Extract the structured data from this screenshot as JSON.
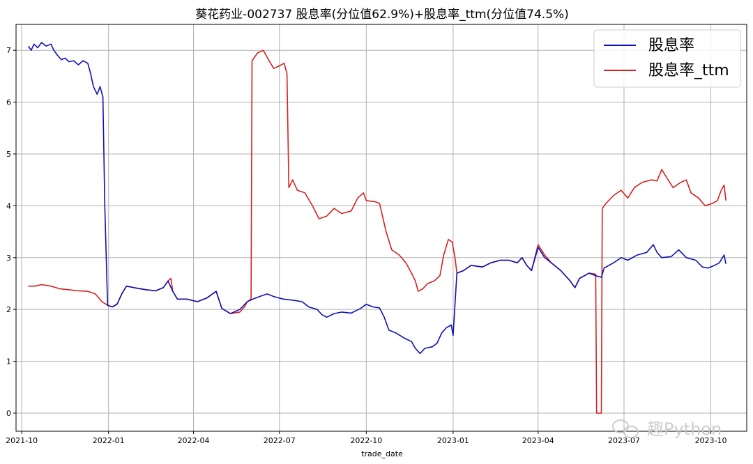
{
  "chart_data": {
    "type": "line",
    "title": "葵花药业-002737 股息率(分位值62.9%)+股息率_ttm(分位值74.5%)",
    "xlabel": "trade_date",
    "ylabel": "",
    "x_range": [
      "2021-09-25",
      "2023-11-08"
    ],
    "ylim": [
      -0.35,
      7.5
    ],
    "y_ticks": [
      0,
      1,
      2,
      3,
      4,
      5,
      6,
      7
    ],
    "x_ticks": [
      {
        "date": "2021-10-01",
        "label": "2021-10"
      },
      {
        "date": "2022-01-01",
        "label": "2022-01"
      },
      {
        "date": "2022-04-01",
        "label": "2022-04"
      },
      {
        "date": "2022-07-01",
        "label": "2022-07"
      },
      {
        "date": "2022-10-01",
        "label": "2022-10"
      },
      {
        "date": "2023-01-01",
        "label": "2023-01"
      },
      {
        "date": "2023-04-01",
        "label": "2023-04"
      },
      {
        "date": "2023-07-01",
        "label": "2023-07"
      },
      {
        "date": "2023-10-01",
        "label": "2023-10"
      }
    ],
    "grid": true,
    "legend_position": "top-right",
    "series": [
      {
        "name": "股息率",
        "color": "#1010b4",
        "points": [
          [
            "2021-10-08",
            7.08
          ],
          [
            "2021-10-11",
            7.0
          ],
          [
            "2021-10-14",
            7.12
          ],
          [
            "2021-10-18",
            7.05
          ],
          [
            "2021-10-22",
            7.15
          ],
          [
            "2021-10-27",
            7.08
          ],
          [
            "2021-11-01",
            7.12
          ],
          [
            "2021-11-04",
            7.0
          ],
          [
            "2021-11-08",
            6.9
          ],
          [
            "2021-11-12",
            6.82
          ],
          [
            "2021-11-16",
            6.85
          ],
          [
            "2021-11-20",
            6.78
          ],
          [
            "2021-11-25",
            6.8
          ],
          [
            "2021-11-30",
            6.72
          ],
          [
            "2021-12-05",
            6.8
          ],
          [
            "2021-12-10",
            6.75
          ],
          [
            "2021-12-13",
            6.55
          ],
          [
            "2021-12-16",
            6.3
          ],
          [
            "2021-12-20",
            6.15
          ],
          [
            "2021-12-23",
            6.3
          ],
          [
            "2021-12-26",
            6.1
          ],
          [
            "2021-12-28",
            4.0
          ],
          [
            "2021-12-31",
            2.08
          ],
          [
            "2022-01-05",
            2.05
          ],
          [
            "2022-01-10",
            2.1
          ],
          [
            "2022-01-15",
            2.3
          ],
          [
            "2022-01-20",
            2.45
          ],
          [
            "2022-01-28",
            2.42
          ],
          [
            "2022-02-10",
            2.38
          ],
          [
            "2022-02-20",
            2.36
          ],
          [
            "2022-02-28",
            2.42
          ],
          [
            "2022-03-05",
            2.55
          ],
          [
            "2022-03-10",
            2.35
          ],
          [
            "2022-03-15",
            2.2
          ],
          [
            "2022-03-25",
            2.2
          ],
          [
            "2022-04-05",
            2.15
          ],
          [
            "2022-04-15",
            2.22
          ],
          [
            "2022-04-25",
            2.35
          ],
          [
            "2022-05-01",
            2.02
          ],
          [
            "2022-05-10",
            1.92
          ],
          [
            "2022-05-20",
            2.0
          ],
          [
            "2022-05-28",
            2.15
          ],
          [
            "2022-06-03",
            2.2
          ],
          [
            "2022-06-10",
            2.25
          ],
          [
            "2022-06-18",
            2.3
          ],
          [
            "2022-06-25",
            2.25
          ],
          [
            "2022-07-05",
            2.2
          ],
          [
            "2022-07-15",
            2.18
          ],
          [
            "2022-07-25",
            2.15
          ],
          [
            "2022-08-01",
            2.05
          ],
          [
            "2022-08-10",
            2.0
          ],
          [
            "2022-08-15",
            1.9
          ],
          [
            "2022-08-20",
            1.85
          ],
          [
            "2022-08-28",
            1.92
          ],
          [
            "2022-09-05",
            1.95
          ],
          [
            "2022-09-15",
            1.93
          ],
          [
            "2022-09-25",
            2.02
          ],
          [
            "2022-10-01",
            2.1
          ],
          [
            "2022-10-08",
            2.05
          ],
          [
            "2022-10-15",
            2.03
          ],
          [
            "2022-10-20",
            1.85
          ],
          [
            "2022-10-25",
            1.6
          ],
          [
            "2022-11-01",
            1.55
          ],
          [
            "2022-11-10",
            1.45
          ],
          [
            "2022-11-18",
            1.38
          ],
          [
            "2022-11-22",
            1.25
          ],
          [
            "2022-11-27",
            1.15
          ],
          [
            "2022-12-02",
            1.25
          ],
          [
            "2022-12-10",
            1.28
          ],
          [
            "2022-12-15",
            1.35
          ],
          [
            "2022-12-20",
            1.55
          ],
          [
            "2022-12-25",
            1.65
          ],
          [
            "2022-12-30",
            1.7
          ],
          [
            "2023-01-01",
            1.5
          ],
          [
            "2023-01-05",
            2.7
          ],
          [
            "2023-01-12",
            2.75
          ],
          [
            "2023-01-20",
            2.85
          ],
          [
            "2023-02-01",
            2.82
          ],
          [
            "2023-02-10",
            2.9
          ],
          [
            "2023-02-20",
            2.95
          ],
          [
            "2023-03-01",
            2.95
          ],
          [
            "2023-03-10",
            2.9
          ],
          [
            "2023-03-15",
            3.0
          ],
          [
            "2023-03-20",
            2.85
          ],
          [
            "2023-03-25",
            2.75
          ],
          [
            "2023-04-01",
            3.2
          ],
          [
            "2023-04-08",
            3.0
          ],
          [
            "2023-04-15",
            2.9
          ],
          [
            "2023-04-25",
            2.75
          ],
          [
            "2023-05-05",
            2.55
          ],
          [
            "2023-05-10",
            2.42
          ],
          [
            "2023-05-15",
            2.6
          ],
          [
            "2023-05-25",
            2.7
          ],
          [
            "2023-06-01",
            2.65
          ],
          [
            "2023-06-07",
            2.62
          ],
          [
            "2023-06-10",
            2.8
          ],
          [
            "2023-06-20",
            2.9
          ],
          [
            "2023-06-28",
            3.0
          ],
          [
            "2023-07-05",
            2.95
          ],
          [
            "2023-07-15",
            3.05
          ],
          [
            "2023-07-25",
            3.1
          ],
          [
            "2023-08-01",
            3.25
          ],
          [
            "2023-08-05",
            3.1
          ],
          [
            "2023-08-10",
            3.0
          ],
          [
            "2023-08-20",
            3.02
          ],
          [
            "2023-08-28",
            3.15
          ],
          [
            "2023-09-05",
            3.0
          ],
          [
            "2023-09-15",
            2.95
          ],
          [
            "2023-09-22",
            2.82
          ],
          [
            "2023-09-28",
            2.8
          ],
          [
            "2023-10-05",
            2.85
          ],
          [
            "2023-10-10",
            2.9
          ],
          [
            "2023-10-15",
            3.05
          ],
          [
            "2023-10-17",
            2.88
          ]
        ]
      },
      {
        "name": "股息率_ttm",
        "color": "#d42020",
        "points": [
          [
            "2021-10-08",
            2.45
          ],
          [
            "2021-10-15",
            2.45
          ],
          [
            "2021-10-22",
            2.48
          ],
          [
            "2021-11-01",
            2.45
          ],
          [
            "2021-11-10",
            2.4
          ],
          [
            "2021-11-20",
            2.38
          ],
          [
            "2021-11-30",
            2.36
          ],
          [
            "2021-12-10",
            2.35
          ],
          [
            "2021-12-18",
            2.3
          ],
          [
            "2021-12-25",
            2.15
          ],
          [
            "2021-12-31",
            2.08
          ],
          [
            "2022-01-05",
            2.05
          ],
          [
            "2022-01-10",
            2.1
          ],
          [
            "2022-01-15",
            2.3
          ],
          [
            "2022-01-20",
            2.45
          ],
          [
            "2022-01-28",
            2.42
          ],
          [
            "2022-02-10",
            2.38
          ],
          [
            "2022-02-20",
            2.36
          ],
          [
            "2022-02-28",
            2.42
          ],
          [
            "2022-03-05",
            2.55
          ],
          [
            "2022-03-08",
            2.6
          ],
          [
            "2022-03-10",
            2.35
          ],
          [
            "2022-03-15",
            2.2
          ],
          [
            "2022-03-25",
            2.2
          ],
          [
            "2022-04-05",
            2.15
          ],
          [
            "2022-04-15",
            2.22
          ],
          [
            "2022-04-25",
            2.35
          ],
          [
            "2022-05-01",
            2.02
          ],
          [
            "2022-05-10",
            1.92
          ],
          [
            "2022-05-20",
            1.95
          ],
          [
            "2022-05-25",
            2.05
          ],
          [
            "2022-05-28",
            2.15
          ],
          [
            "2022-06-01",
            2.2
          ],
          [
            "2022-06-02",
            6.8
          ],
          [
            "2022-06-08",
            6.95
          ],
          [
            "2022-06-14",
            7.0
          ],
          [
            "2022-06-20",
            6.8
          ],
          [
            "2022-06-25",
            6.65
          ],
          [
            "2022-07-01",
            6.7
          ],
          [
            "2022-07-06",
            6.75
          ],
          [
            "2022-07-09",
            6.55
          ],
          [
            "2022-07-11",
            4.35
          ],
          [
            "2022-07-15",
            4.5
          ],
          [
            "2022-07-20",
            4.3
          ],
          [
            "2022-07-28",
            4.25
          ],
          [
            "2022-08-05",
            4.0
          ],
          [
            "2022-08-12",
            3.75
          ],
          [
            "2022-08-20",
            3.8
          ],
          [
            "2022-08-28",
            3.95
          ],
          [
            "2022-09-05",
            3.85
          ],
          [
            "2022-09-15",
            3.9
          ],
          [
            "2022-09-22",
            4.15
          ],
          [
            "2022-09-28",
            4.25
          ],
          [
            "2022-10-01",
            4.1
          ],
          [
            "2022-10-10",
            4.08
          ],
          [
            "2022-10-15",
            4.05
          ],
          [
            "2022-10-22",
            3.5
          ],
          [
            "2022-10-28",
            3.15
          ],
          [
            "2022-11-05",
            3.05
          ],
          [
            "2022-11-12",
            2.9
          ],
          [
            "2022-11-18",
            2.7
          ],
          [
            "2022-11-22",
            2.55
          ],
          [
            "2022-11-25",
            2.35
          ],
          [
            "2022-11-30",
            2.4
          ],
          [
            "2022-12-05",
            2.5
          ],
          [
            "2022-12-12",
            2.55
          ],
          [
            "2022-12-18",
            2.65
          ],
          [
            "2022-12-22",
            3.05
          ],
          [
            "2022-12-27",
            3.35
          ],
          [
            "2022-12-31",
            3.3
          ],
          [
            "2023-01-03",
            3.0
          ],
          [
            "2023-01-05",
            2.7
          ],
          [
            "2023-01-12",
            2.75
          ],
          [
            "2023-01-20",
            2.85
          ],
          [
            "2023-02-01",
            2.82
          ],
          [
            "2023-02-10",
            2.9
          ],
          [
            "2023-02-20",
            2.95
          ],
          [
            "2023-03-01",
            2.95
          ],
          [
            "2023-03-10",
            2.9
          ],
          [
            "2023-03-15",
            3.0
          ],
          [
            "2023-03-20",
            2.85
          ],
          [
            "2023-03-25",
            2.75
          ],
          [
            "2023-04-01",
            3.25
          ],
          [
            "2023-04-08",
            3.05
          ],
          [
            "2023-04-15",
            2.9
          ],
          [
            "2023-04-25",
            2.75
          ],
          [
            "2023-05-05",
            2.55
          ],
          [
            "2023-05-10",
            2.42
          ],
          [
            "2023-05-15",
            2.6
          ],
          [
            "2023-05-25",
            2.7
          ],
          [
            "2023-06-01",
            2.68
          ],
          [
            "2023-06-02",
            0.0
          ],
          [
            "2023-06-07",
            0.0
          ],
          [
            "2023-06-08",
            3.95
          ],
          [
            "2023-06-12",
            4.05
          ],
          [
            "2023-06-20",
            4.2
          ],
          [
            "2023-06-28",
            4.3
          ],
          [
            "2023-07-05",
            4.15
          ],
          [
            "2023-07-12",
            4.35
          ],
          [
            "2023-07-20",
            4.45
          ],
          [
            "2023-07-30",
            4.5
          ],
          [
            "2023-08-05",
            4.48
          ],
          [
            "2023-08-10",
            4.7
          ],
          [
            "2023-08-15",
            4.55
          ],
          [
            "2023-08-22",
            4.35
          ],
          [
            "2023-08-30",
            4.45
          ],
          [
            "2023-09-05",
            4.5
          ],
          [
            "2023-09-10",
            4.25
          ],
          [
            "2023-09-18",
            4.15
          ],
          [
            "2023-09-25",
            4.0
          ],
          [
            "2023-10-03",
            4.05
          ],
          [
            "2023-10-08",
            4.1
          ],
          [
            "2023-10-12",
            4.3
          ],
          [
            "2023-10-15",
            4.4
          ],
          [
            "2023-10-17",
            4.1
          ]
        ]
      }
    ]
  },
  "watermark": {
    "icon": "wechat-icon",
    "text": "趣Python"
  }
}
